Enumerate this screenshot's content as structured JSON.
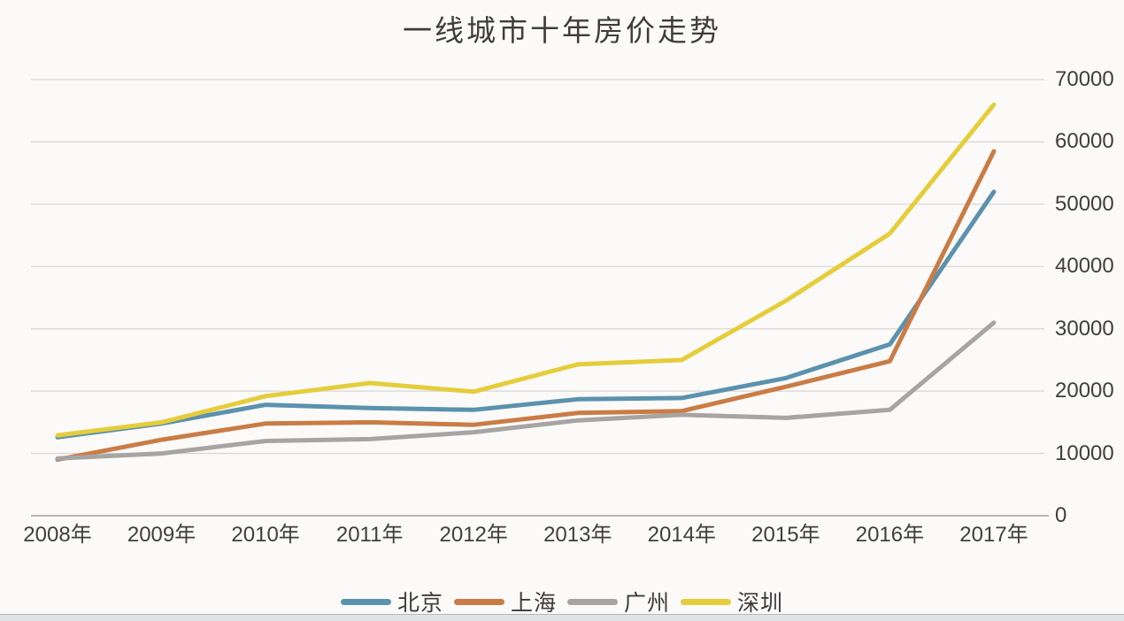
{
  "page": {
    "background_color": "#fbfaf8",
    "text_color": "#3f3f3f",
    "grid_color": "#d9d7d4",
    "axis_line_color": "#aeaca8",
    "bottom_strip_color": "#dfe3e5"
  },
  "chart_data": {
    "type": "line",
    "title": "一线城市十年房价走势",
    "x": [
      "2008年",
      "2009年",
      "2010年",
      "2011年",
      "2012年",
      "2013年",
      "2014年",
      "2015年",
      "2016年",
      "2017年"
    ],
    "series": [
      {
        "id": "beijing",
        "name": "北京",
        "color": "#5b92ad",
        "values": [
          12600,
          14800,
          17800,
          17300,
          17000,
          18700,
          18900,
          22100,
          27500,
          52000
        ]
      },
      {
        "id": "shanghai",
        "name": "上海",
        "color": "#c97c45",
        "values": [
          9000,
          12200,
          14800,
          15000,
          14600,
          16500,
          16800,
          20700,
          24800,
          58500
        ]
      },
      {
        "id": "guangzhou",
        "name": "广州",
        "color": "#a7a5a3",
        "values": [
          9200,
          10000,
          12000,
          12300,
          13400,
          15300,
          16200,
          15700,
          17000,
          31000
        ]
      },
      {
        "id": "shenzhen",
        "name": "深圳",
        "color": "#e5cd3b",
        "values": [
          12900,
          15000,
          19200,
          21300,
          19900,
          24300,
          25000,
          34500,
          45300,
          66000
        ]
      }
    ],
    "y_ticks": [
      0,
      10000,
      20000,
      30000,
      40000,
      50000,
      60000,
      70000
    ],
    "ylim": [
      0,
      70000
    ],
    "grid": "horizontal",
    "legend_position": "bottom",
    "y_axis_side": "right"
  }
}
